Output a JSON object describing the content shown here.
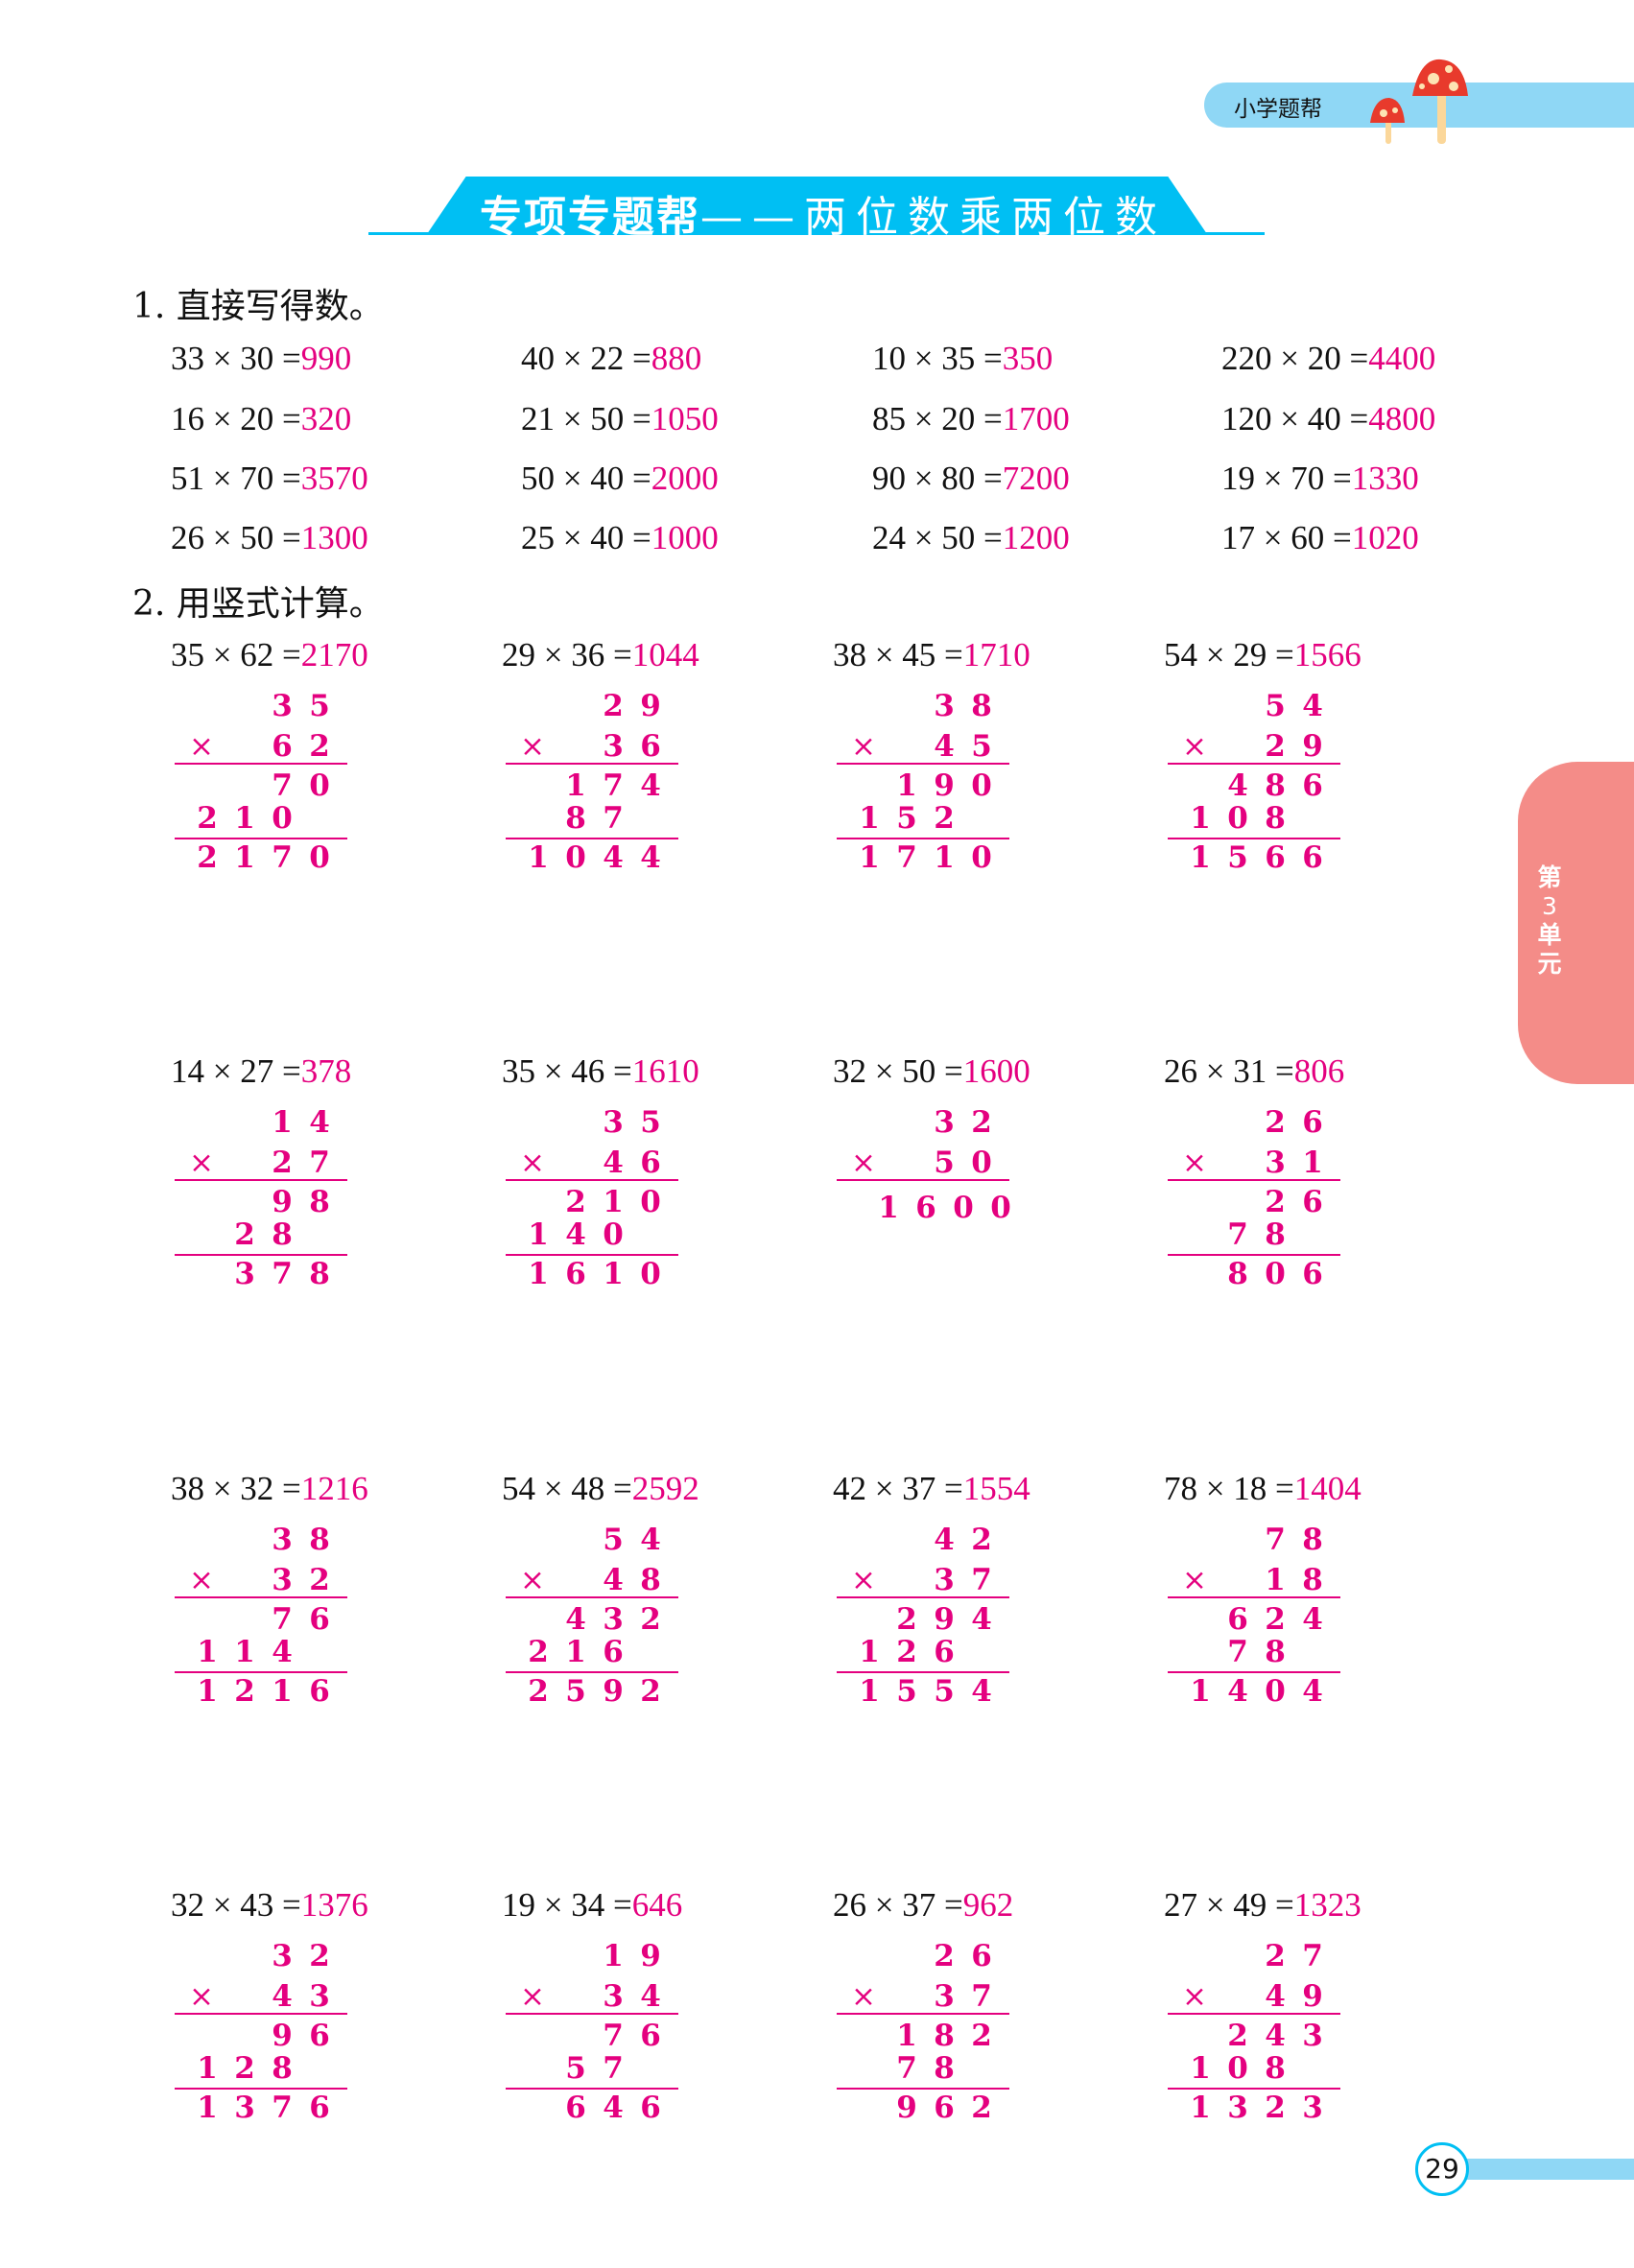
{
  "header": {
    "brand": "小学题帮",
    "mushroom_icon": "mushroom-icon"
  },
  "banner": {
    "title": "专项专题帮",
    "dash": "——",
    "subtitle": "两位数乘两位数"
  },
  "side_tab": {
    "label": [
      "第",
      "3",
      "单",
      "元"
    ]
  },
  "colors": {
    "answer": "#e4007f",
    "banner": "#00bff3",
    "pill": "#8fd7f5",
    "tab": "#f48c88"
  },
  "section1": {
    "heading": "1. 直接写得数。",
    "items": [
      {
        "q": "33 × 30 =",
        "a": "990"
      },
      {
        "q": "40 × 22 =",
        "a": "880"
      },
      {
        "q": "10 × 35 =",
        "a": "350"
      },
      {
        "q": "220 × 20 =",
        "a": "4400"
      },
      {
        "q": "16 × 20 =",
        "a": "320"
      },
      {
        "q": "21 × 50 =",
        "a": "1050"
      },
      {
        "q": "85 × 20 =",
        "a": "1700"
      },
      {
        "q": "120 × 40 =",
        "a": "4800"
      },
      {
        "q": "51 × 70 =",
        "a": "3570"
      },
      {
        "q": "50 × 40 =",
        "a": "2000"
      },
      {
        "q": "90 × 80 =",
        "a": "7200"
      },
      {
        "q": "19 × 70 =",
        "a": "1330"
      },
      {
        "q": "26 × 50 =",
        "a": "1300"
      },
      {
        "q": "25 × 40 =",
        "a": "1000"
      },
      {
        "q": "24 × 50 =",
        "a": "1200"
      },
      {
        "q": "17 × 60 =",
        "a": "1020"
      }
    ]
  },
  "section2": {
    "heading": "2. 用竖式计算。",
    "times_sign": "×",
    "items": [
      {
        "q": "35 × 62 =",
        "a": "2170",
        "top": "35",
        "mult": "62",
        "partials": [
          "70",
          "210"
        ],
        "result": "2170"
      },
      {
        "q": "29 × 36 =",
        "a": "1044",
        "top": "29",
        "mult": "36",
        "partials": [
          "174",
          "87"
        ],
        "result": "1044"
      },
      {
        "q": "38 × 45 =",
        "a": "1710",
        "top": "38",
        "mult": "45",
        "partials": [
          "190",
          "152"
        ],
        "result": "1710"
      },
      {
        "q": "54 × 29 =",
        "a": "1566",
        "top": "54",
        "mult": "29",
        "partials": [
          "486",
          "108"
        ],
        "result": "1566"
      },
      {
        "q": "14 × 27 =",
        "a": "378",
        "top": "14",
        "mult": "27",
        "partials": [
          "98",
          "28"
        ],
        "result": "378"
      },
      {
        "q": "35 × 46 =",
        "a": "1610",
        "top": "35",
        "mult": "46",
        "partials": [
          "210",
          "140"
        ],
        "result": "1610"
      },
      {
        "q": "32 × 50 =",
        "a": "1600",
        "top": "32",
        "mult": "50",
        "partials": [],
        "result": "1600"
      },
      {
        "q": "26 × 31 =",
        "a": "806",
        "top": "26",
        "mult": "31",
        "partials": [
          "26",
          "78"
        ],
        "result": "806"
      },
      {
        "q": "38 × 32 =",
        "a": "1216",
        "top": "38",
        "mult": "32",
        "partials": [
          "76",
          "114"
        ],
        "result": "1216"
      },
      {
        "q": "54 × 48 =",
        "a": "2592",
        "top": "54",
        "mult": "48",
        "partials": [
          "432",
          "216"
        ],
        "result": "2592"
      },
      {
        "q": "42 × 37 =",
        "a": "1554",
        "top": "42",
        "mult": "37",
        "partials": [
          "294",
          "126"
        ],
        "result": "1554"
      },
      {
        "q": "78 × 18 =",
        "a": "1404",
        "top": "78",
        "mult": "18",
        "partials": [
          "624",
          "78"
        ],
        "result": "1404"
      },
      {
        "q": "32 × 43 =",
        "a": "1376",
        "top": "32",
        "mult": "43",
        "partials": [
          "96",
          "128"
        ],
        "result": "1376"
      },
      {
        "q": "19 × 34 =",
        "a": "646",
        "top": "19",
        "mult": "34",
        "partials": [
          "76",
          "57"
        ],
        "result": "646"
      },
      {
        "q": "26 × 37 =",
        "a": "962",
        "top": "26",
        "mult": "37",
        "partials": [
          "182",
          "78"
        ],
        "result": "962"
      },
      {
        "q": "27 × 49 =",
        "a": "1323",
        "top": "27",
        "mult": "49",
        "partials": [
          "243",
          "108"
        ],
        "result": "1323"
      }
    ]
  },
  "page_number": "29"
}
